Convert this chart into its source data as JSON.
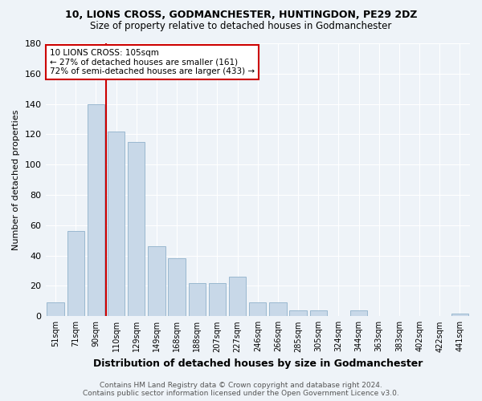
{
  "title": "10, LIONS CROSS, GODMANCHESTER, HUNTINGDON, PE29 2DZ",
  "subtitle": "Size of property relative to detached houses in Godmanchester",
  "xlabel": "Distribution of detached houses by size in Godmanchester",
  "ylabel": "Number of detached properties",
  "footer_line1": "Contains HM Land Registry data © Crown copyright and database right 2024.",
  "footer_line2": "Contains public sector information licensed under the Open Government Licence v3.0.",
  "bin_labels": [
    "51sqm",
    "71sqm",
    "90sqm",
    "110sqm",
    "129sqm",
    "149sqm",
    "168sqm",
    "188sqm",
    "207sqm",
    "227sqm",
    "246sqm",
    "266sqm",
    "285sqm",
    "305sqm",
    "324sqm",
    "344sqm",
    "363sqm",
    "383sqm",
    "402sqm",
    "422sqm",
    "441sqm"
  ],
  "bar_heights": [
    9,
    56,
    140,
    122,
    115,
    46,
    38,
    22,
    22,
    26,
    9,
    9,
    4,
    4,
    0,
    4,
    0,
    0,
    0,
    0,
    2
  ],
  "bar_color": "#c8d8e8",
  "bar_edge_color": "#9ab8d0",
  "vline_x_index": 3,
  "annotation_box_color": "#cc0000",
  "bg_color": "#eef3f8",
  "plot_bg_color": "#eef3f8",
  "grid_color": "#ffffff",
  "ylim": [
    0,
    180
  ],
  "yticks": [
    0,
    20,
    40,
    60,
    80,
    100,
    120,
    140,
    160,
    180
  ],
  "pct_smaller": 27,
  "n_smaller": 161,
  "pct_larger_semi": 72,
  "n_larger_semi": 433
}
